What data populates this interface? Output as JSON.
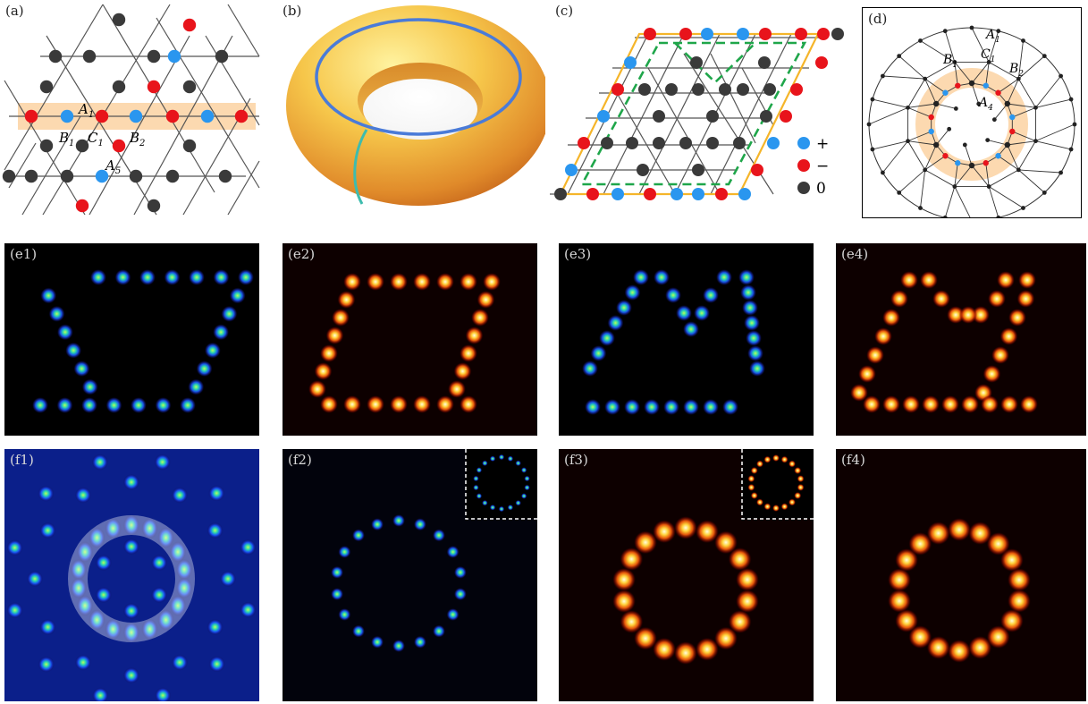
{
  "panels": {
    "a": {
      "label": "(a)"
    },
    "b": {
      "label": "(b)"
    },
    "c": {
      "label": "(c)"
    },
    "d": {
      "label": "(d)"
    },
    "e1": {
      "label": "(e1)"
    },
    "e2": {
      "label": "(e2)"
    },
    "e3": {
      "label": "(e3)"
    },
    "e4": {
      "label": "(e4)"
    },
    "f1": {
      "label": "(f1)"
    },
    "f2": {
      "label": "(f2)"
    },
    "f3": {
      "label": "(f3)"
    },
    "f4": {
      "label": "(f4)"
    }
  },
  "site_labels_a": {
    "a1": {
      "base": "A",
      "sub": "1"
    },
    "b1": {
      "base": "B",
      "sub": "1"
    },
    "c1": {
      "base": "C",
      "sub": "1"
    },
    "b2": {
      "base": "B",
      "sub": "2"
    },
    "a5": {
      "base": "A",
      "sub": "5"
    }
  },
  "site_labels_d": {
    "a1": {
      "base": "A",
      "sub": "1"
    },
    "c1": {
      "base": "C",
      "sub": "1"
    },
    "b1": {
      "base": "B",
      "sub": "1"
    },
    "b2": {
      "base": "B",
      "sub": "2"
    },
    "a4": {
      "base": "A",
      "sub": "4"
    }
  },
  "legend": [
    {
      "symbol": "+",
      "color": "#2a96ef"
    },
    {
      "symbol": "−",
      "color": "#e8141b"
    },
    {
      "symbol": "0",
      "color": "#3a3a3a"
    }
  ],
  "colors": {
    "plus": "#2a96ef",
    "minus": "#e8141b",
    "zero": "#3a3a3a",
    "highlight": "#fcd9b0",
    "boundary": "#f5b52a",
    "dashed": "#1fa64a"
  }
}
